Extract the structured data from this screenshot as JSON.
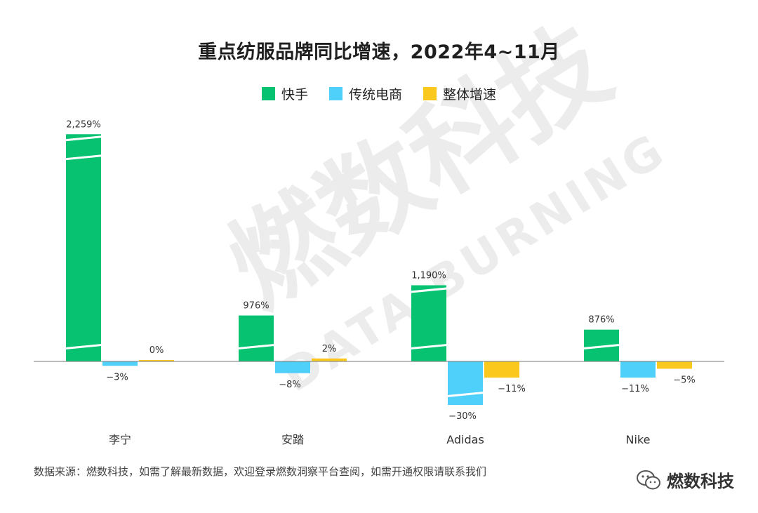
{
  "title": "重点纺服品牌同比增速，2022年4~11月",
  "legend": [
    {
      "label": "快手",
      "color": "#06c271"
    },
    {
      "label": "传统电商",
      "color": "#4fd0fa"
    },
    {
      "label": "整体增速",
      "color": "#fbc81e"
    }
  ],
  "chart_data": {
    "type": "bar",
    "title": "重点纺服品牌同比增速，2022年4~11月",
    "categories": [
      "李宁",
      "安踏",
      "Adidas",
      "Nike"
    ],
    "series": [
      {
        "name": "快手",
        "color": "#06c271",
        "values": [
          2259,
          976,
          1190,
          876
        ],
        "labels": [
          "2,259%",
          "976%",
          "1,190%",
          "876%"
        ]
      },
      {
        "name": "传统电商",
        "color": "#4fd0fa",
        "values": [
          -3,
          -8,
          -30,
          -11
        ],
        "labels": [
          "−3%",
          "−8%",
          "−30%",
          "−11%"
        ]
      },
      {
        "name": "整体增速",
        "color": "#fbc81e",
        "values": [
          0,
          2,
          -11,
          -5
        ],
        "labels": [
          "0%",
          "2%",
          "−11%",
          "−5%"
        ]
      }
    ],
    "axis_breaks": true,
    "ylabel": "",
    "xlabel": "",
    "grid": false,
    "legend_position": "top-center"
  },
  "source": "数据来源：燃数科技，如需了解最新数据，欢迎登录燃数洞察平台查阅，如需开通权限请联系我们",
  "watermark": {
    "text_cn": "燃数科技",
    "text_en": "DATA BURNING"
  },
  "brand": {
    "name": "燃数科技"
  }
}
